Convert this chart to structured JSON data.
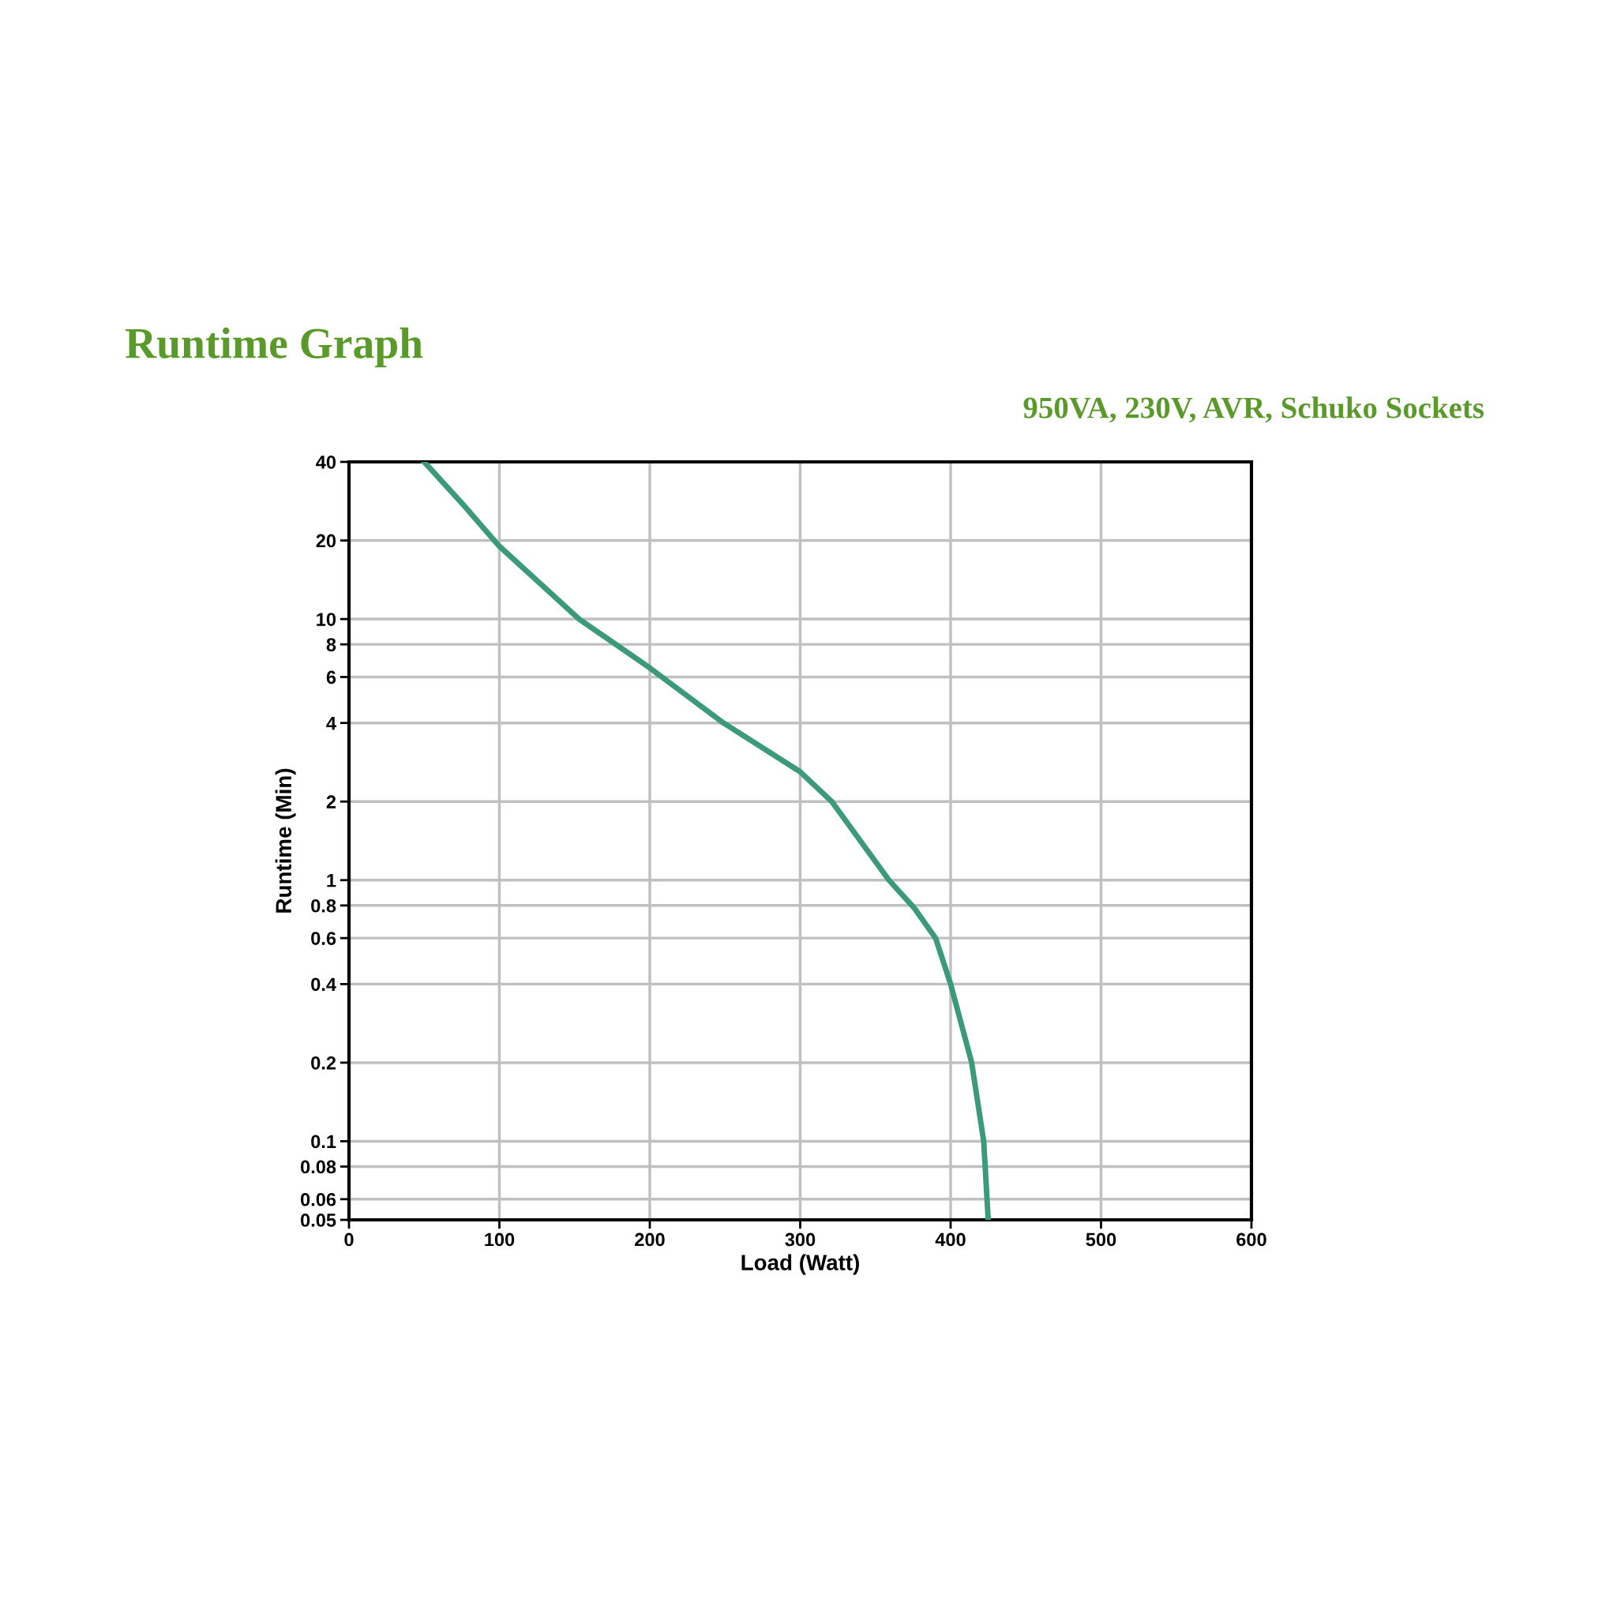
{
  "chart_data": {
    "type": "line",
    "title": "Runtime Graph",
    "subtitle": "950VA, 230V, AVR, Schuko Sockets",
    "xlabel": "Load (Watt)",
    "ylabel": "Runtime (Min)",
    "series": [
      {
        "color": "#3a9a7a",
        "x": [
          50,
          77,
          100,
          153,
          200,
          249,
          300,
          321,
          359,
          376,
          390,
          400,
          414,
          422,
          425
        ],
        "values": [
          40,
          27,
          19,
          10,
          6.5,
          4,
          2.6,
          2,
          1,
          0.78,
          0.6,
          0.4,
          0.2,
          0.1,
          0.05
        ]
      }
    ],
    "xlim": [
      0,
      600
    ],
    "xticks": [
      0,
      100,
      200,
      300,
      400,
      500,
      600
    ],
    "log": "y",
    "ylim": [
      0.05,
      40
    ],
    "yticks": [
      0.05,
      0.06,
      0.08,
      0.1,
      0.2,
      0.4,
      0.6,
      0.8,
      1,
      2,
      4,
      6,
      8,
      10,
      20,
      40
    ],
    "grid": true,
    "line_style": "solid",
    "marker": "none"
  }
}
